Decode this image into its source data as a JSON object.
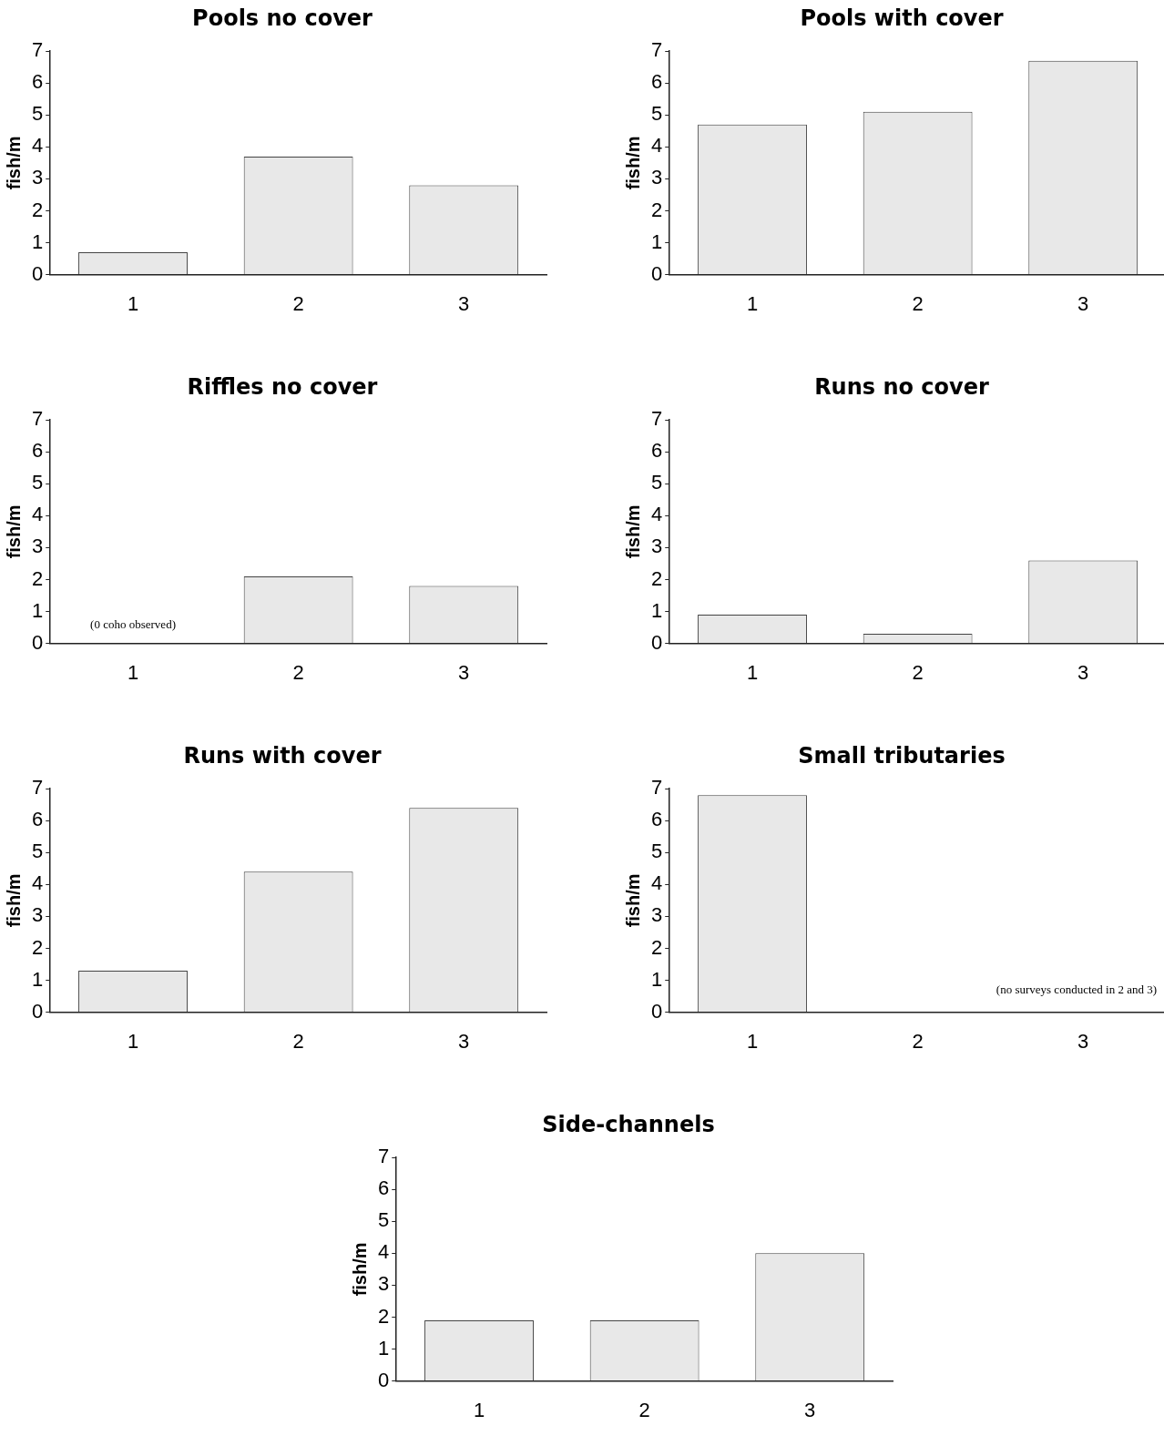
{
  "chart_data": [
    {
      "type": "bar",
      "title": "Pools no cover",
      "ylabel": "fish/m",
      "categories": [
        "1",
        "2",
        "3"
      ],
      "values": [
        0.7,
        3.7,
        2.8
      ],
      "color": "#e8e8e8",
      "ylim": [
        0,
        7
      ],
      "yticks": [
        0,
        1,
        2,
        3,
        4,
        5,
        6,
        7
      ]
    },
    {
      "type": "bar",
      "title": "Pools with cover",
      "ylabel": "fish/m",
      "categories": [
        "1",
        "2",
        "3"
      ],
      "values": [
        4.7,
        5.1,
        6.7
      ],
      "color": "#e8e8e8",
      "ylim": [
        0,
        7
      ],
      "yticks": [
        0,
        1,
        2,
        3,
        4,
        5,
        6,
        7
      ]
    },
    {
      "type": "bar",
      "title": "Riffles no cover",
      "ylabel": "fish/m",
      "categories": [
        "1",
        "2",
        "3"
      ],
      "values": [
        0,
        2.1,
        1.8
      ],
      "color": "#e8e8e8",
      "ylim": [
        0,
        7
      ],
      "yticks": [
        0,
        1,
        2,
        3,
        4,
        5,
        6,
        7
      ],
      "annotations": [
        {
          "text": "(0 coho observed)",
          "x": "1",
          "y": 0
        }
      ]
    },
    {
      "type": "bar",
      "title": "Runs no cover",
      "ylabel": "fish/m",
      "categories": [
        "1",
        "2",
        "3"
      ],
      "values": [
        0.9,
        0.3,
        2.6
      ],
      "color": "#e8e8e8",
      "ylim": [
        0,
        7
      ],
      "yticks": [
        0,
        1,
        2,
        3,
        4,
        5,
        6,
        7
      ]
    },
    {
      "type": "bar",
      "title": "Runs with cover",
      "ylabel": "fish/m",
      "categories": [
        "1",
        "2",
        "3"
      ],
      "values": [
        1.3,
        4.4,
        6.4
      ],
      "color": "#e8e8e8",
      "ylim": [
        0,
        7
      ],
      "yticks": [
        0,
        1,
        2,
        3,
        4,
        5,
        6,
        7
      ]
    },
    {
      "type": "bar",
      "title": "Small tributaries",
      "ylabel": "fish/m",
      "categories": [
        "1",
        "2",
        "3"
      ],
      "values": [
        6.8,
        null,
        null
      ],
      "color": "#e8e8e8",
      "ylim": [
        0,
        7
      ],
      "yticks": [
        0,
        1,
        2,
        3,
        4,
        5,
        6,
        7
      ],
      "annotations": [
        "(no surveys conducted in 2 and 3)"
      ]
    },
    {
      "type": "bar",
      "title": "Side-channels",
      "ylabel": "fish/m",
      "categories": [
        "1",
        "2",
        "3"
      ],
      "values": [
        1.9,
        1.9,
        4.0
      ],
      "color": "#e8e8e8",
      "ylim": [
        0,
        7
      ],
      "yticks": [
        0,
        1,
        2,
        3,
        4,
        5,
        6,
        7
      ]
    }
  ]
}
